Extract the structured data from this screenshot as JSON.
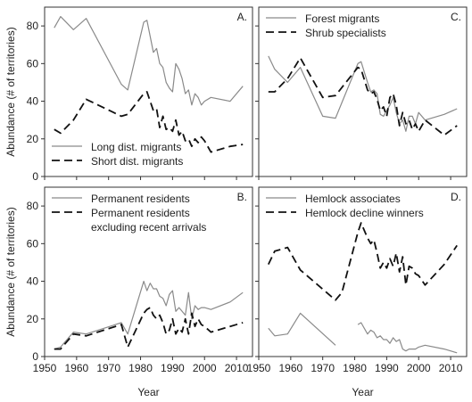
{
  "chart_data": [
    {
      "type": "line",
      "label": "A.",
      "ylabel": "Abundance (# of territories)",
      "legend": "lower left",
      "xlim": [
        1950,
        2015
      ],
      "xticks": [
        1950,
        1960,
        1970,
        1980,
        1990,
        2000,
        2010
      ],
      "ylim": [
        0,
        90
      ],
      "yticks": [
        0,
        20,
        40,
        60,
        80
      ],
      "x": [
        1953,
        1955,
        1959,
        1963,
        1974,
        1976,
        1981,
        1982,
        1984,
        1985,
        1986,
        1987,
        1988,
        1989,
        1990,
        1991,
        1992,
        1993,
        1994,
        1995,
        1996,
        1997,
        1998,
        1999,
        2000,
        2002,
        2008,
        2012
      ],
      "series": [
        {
          "name": "Long dist. migrants",
          "color": "#8a8a8a",
          "style": "solid",
          "values": [
            79,
            85,
            78,
            84,
            49,
            46,
            82,
            83,
            66,
            68,
            60,
            58,
            50,
            47,
            45,
            60,
            57,
            52,
            44,
            46,
            38,
            44,
            42,
            38,
            40,
            42,
            40,
            48
          ]
        },
        {
          "name": "Short dist. migrants",
          "color": "#111111",
          "style": "dashed",
          "values": [
            25,
            23,
            30,
            41,
            32,
            33,
            44,
            45,
            35,
            36,
            26,
            32,
            25,
            26,
            24,
            30,
            22,
            24,
            19,
            20,
            16,
            20,
            18,
            21,
            19,
            13,
            16,
            17
          ]
        }
      ]
    },
    {
      "type": "line",
      "label": "C.",
      "legend": "upper left",
      "xlim": [
        1950,
        2015
      ],
      "xticks": [
        1950,
        1960,
        1970,
        1980,
        1990,
        2000,
        2010
      ],
      "ylim": [
        0,
        90
      ],
      "yticks": [
        0,
        20,
        40,
        60,
        80
      ],
      "x": [
        1953,
        1955,
        1959,
        1963,
        1970,
        1974,
        1981,
        1982,
        1984,
        1985,
        1986,
        1987,
        1988,
        1989,
        1990,
        1991,
        1992,
        1993,
        1994,
        1995,
        1996,
        1997,
        1998,
        1999,
        2000,
        2002,
        2008,
        2012
      ],
      "series": [
        {
          "name": "Forest migrants",
          "color": "#8a8a8a",
          "style": "solid",
          "values": [
            64,
            57,
            50,
            58,
            32,
            31,
            60,
            61,
            50,
            45,
            46,
            44,
            33,
            32,
            35,
            38,
            42,
            34,
            28,
            30,
            24,
            32,
            32,
            28,
            34,
            30,
            33,
            36
          ]
        },
        {
          "name": "Shrub specialists",
          "color": "#111111",
          "style": "dashed",
          "values": [
            45,
            45,
            52,
            63,
            42,
            43,
            58,
            57,
            46,
            44,
            45,
            41,
            35,
            37,
            32,
            42,
            44,
            38,
            27,
            34,
            28,
            30,
            25,
            28,
            24,
            30,
            22,
            27
          ]
        }
      ]
    },
    {
      "type": "line",
      "label": "B.",
      "ylabel": "Abundance (# of territories)",
      "xlabel": "Year",
      "legend": "upper left",
      "xlim": [
        1950,
        2015
      ],
      "xticks": [
        1950,
        1960,
        1970,
        1980,
        1990,
        2000,
        2010
      ],
      "ylim": [
        0,
        90
      ],
      "yticks": [
        0,
        20,
        40,
        60,
        80
      ],
      "x": [
        1953,
        1955,
        1959,
        1963,
        1974,
        1976,
        1981,
        1982,
        1983,
        1984,
        1985,
        1986,
        1987,
        1988,
        1989,
        1990,
        1991,
        1992,
        1993,
        1994,
        1995,
        1996,
        1997,
        1998,
        1999,
        2000,
        2002,
        2008,
        2012
      ],
      "series": [
        {
          "name": "Permanent residents",
          "color": "#8a8a8a",
          "style": "solid",
          "values": [
            4,
            5,
            13,
            12,
            18,
            12,
            40,
            35,
            39,
            36,
            36,
            32,
            31,
            27,
            33,
            35,
            24,
            26,
            24,
            22,
            34,
            20,
            27,
            25,
            26,
            26,
            25,
            29,
            34
          ]
        },
        {
          "name": "Permanent residents excluding recent arrivals",
          "color": "#111111",
          "style": "dashed",
          "values": [
            4,
            4,
            12,
            11,
            17,
            5,
            23,
            25,
            26,
            22,
            20,
            22,
            18,
            12,
            14,
            20,
            12,
            15,
            13,
            20,
            12,
            23,
            16,
            20,
            17,
            16,
            13,
            16,
            18
          ]
        }
      ]
    },
    {
      "type": "line",
      "label": "D.",
      "xlabel": "Year",
      "legend": "upper left",
      "xlim": [
        1950,
        2015
      ],
      "xticks": [
        1950,
        1960,
        1970,
        1980,
        1990,
        2000,
        2010
      ],
      "ylim": [
        0,
        90
      ],
      "yticks": [
        0,
        20,
        40,
        60,
        80
      ],
      "x": [
        1953,
        1955,
        1959,
        1963,
        1974,
        1976,
        1981,
        1982,
        1984,
        1985,
        1986,
        1987,
        1988,
        1989,
        1990,
        1991,
        1992,
        1993,
        1994,
        1995,
        1996,
        1997,
        1998,
        1999,
        2000,
        2002,
        2008,
        2012
      ],
      "series": [
        {
          "name": "Hemlock associates",
          "color": "#8a8a8a",
          "style": "solid",
          "values": [
            15,
            11,
            12,
            23,
            6,
            null,
            17,
            18,
            12,
            14,
            13,
            10,
            11,
            9,
            9,
            7,
            10,
            8,
            9,
            4,
            3,
            4,
            4,
            4,
            5,
            6,
            4,
            2
          ]
        },
        {
          "name": "Hemlock decline winners",
          "color": "#111111",
          "style": "dashed",
          "values": [
            49,
            56,
            58,
            46,
            30,
            34,
            66,
            71,
            63,
            60,
            62,
            55,
            47,
            50,
            47,
            52,
            48,
            55,
            45,
            53,
            38,
            48,
            47,
            44,
            43,
            38,
            49,
            59
          ]
        }
      ]
    }
  ]
}
